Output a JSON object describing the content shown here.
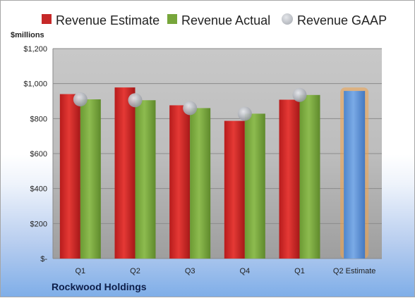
{
  "chart_data": {
    "type": "bar",
    "ylabel": "$millions",
    "ylim": [
      0,
      1200
    ],
    "y_ticks": [
      "$-",
      "$200",
      "$400",
      "$600",
      "$800",
      "$1,000",
      "$1,200"
    ],
    "y_tick_values": [
      0,
      200,
      400,
      600,
      800,
      1000,
      1200
    ],
    "categories": [
      "Q1",
      "Q2",
      "Q3",
      "Q4",
      "Q1",
      "Q2 Estimate"
    ],
    "series": [
      {
        "name": "Revenue Estimate",
        "color": "#c62828",
        "values": [
          940,
          978,
          876,
          787,
          908,
          null
        ]
      },
      {
        "name": "Revenue Actual",
        "color": "#77a63b",
        "values": [
          910,
          905,
          860,
          828,
          935,
          null
        ]
      },
      {
        "name": "Revenue GAAP",
        "color": "#b3b6bc",
        "values": [
          910,
          905,
          860,
          828,
          935,
          null
        ]
      }
    ],
    "estimate_bar": {
      "category": "Q2 Estimate",
      "value": 958,
      "color": "#5b93d6",
      "glow": "#f0a24a"
    },
    "grid": true,
    "legend": "top"
  },
  "company": "Rockwood Holdings"
}
